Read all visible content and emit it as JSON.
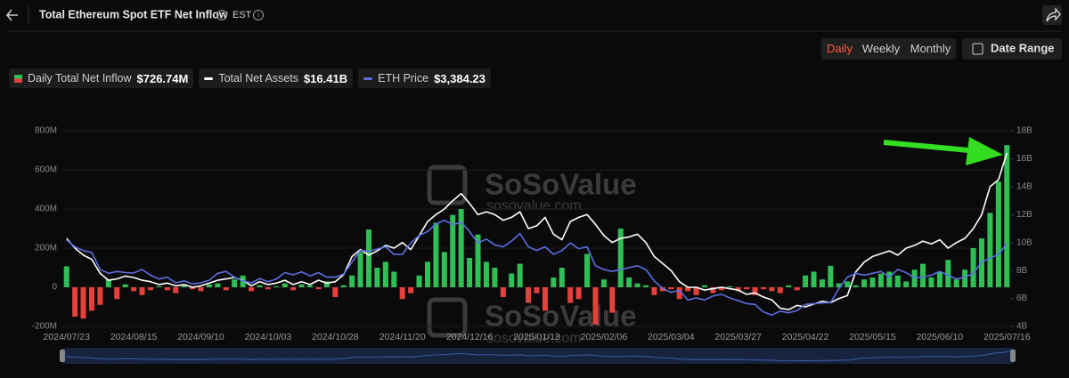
{
  "chart_data": {
    "type": "bar",
    "title": "Total Ethereum Spot ETF Net Inflow",
    "timezone": "EST",
    "tabs": [
      "Daily",
      "Weekly",
      "Monthly"
    ],
    "active_tab": 0,
    "date_range_label": "Date Range",
    "watermark": [
      "SoSoValue",
      "sosovalue.com"
    ],
    "grid": true,
    "categories": [
      "2024/07/23",
      null,
      null,
      null,
      null,
      null,
      null,
      null,
      "2024/08/15",
      null,
      null,
      null,
      null,
      null,
      null,
      null,
      "2024/09/10",
      null,
      null,
      null,
      null,
      null,
      null,
      null,
      "2024/10/03",
      null,
      null,
      null,
      null,
      null,
      null,
      null,
      "2024/10/28",
      null,
      null,
      null,
      null,
      null,
      null,
      null,
      "2024/11/20",
      null,
      null,
      null,
      null,
      null,
      null,
      null,
      "2024/12/16",
      null,
      null,
      null,
      null,
      null,
      null,
      null,
      "2025/01/13",
      null,
      null,
      null,
      null,
      null,
      null,
      null,
      "2025/02/06",
      null,
      null,
      null,
      null,
      null,
      null,
      null,
      "2025/03/04",
      null,
      null,
      null,
      null,
      null,
      null,
      null,
      "2025/03/27",
      null,
      null,
      null,
      null,
      null,
      null,
      null,
      "2025/04/22",
      null,
      null,
      null,
      null,
      null,
      null,
      null,
      "2025/05/15",
      null,
      null,
      null,
      null,
      null,
      null,
      null,
      "2025/06/10",
      null,
      null,
      null,
      null,
      null,
      null,
      null,
      "2025/07/16"
    ],
    "series": [
      {
        "name": "Daily Total Net Inflow",
        "type": "bar",
        "axis": "y",
        "color": "#2fbf55",
        "negative_color": "#e5403b",
        "current_label": "$726.74M",
        "values": [
          107,
          -150,
          -160,
          -120,
          -90,
          40,
          -60,
          15,
          -20,
          -40,
          -15,
          5,
          -15,
          -30,
          10,
          -10,
          -20,
          15,
          20,
          -15,
          40,
          60,
          -20,
          10,
          -10,
          5,
          20,
          -15,
          15,
          10,
          -10,
          30,
          -50,
          10,
          60,
          180,
          295,
          100,
          130,
          80,
          -60,
          -30,
          60,
          130,
          330,
          180,
          370,
          400,
          150,
          270,
          130,
          100,
          -50,
          70,
          120,
          -80,
          -30,
          -120,
          50,
          100,
          -80,
          -60,
          170,
          -190,
          40,
          -130,
          300,
          50,
          20,
          10,
          -40,
          -20,
          -10,
          -60,
          -20,
          -40,
          10,
          -30,
          -15,
          5,
          -20,
          -10,
          -40,
          -10,
          -20,
          -30,
          10,
          -15,
          60,
          80,
          40,
          110,
          20,
          30,
          10,
          40,
          50,
          70,
          80,
          60,
          30,
          90,
          120,
          50,
          80,
          140,
          40,
          90,
          200,
          250,
          380,
          540,
          726.74
        ]
      },
      {
        "name": "Total Net Assets",
        "type": "line",
        "axis": "y2",
        "color": "#ffffff",
        "current_label": "$16.41B",
        "values": [
          10.3,
          9.6,
          9.1,
          8.8,
          7.8,
          7.3,
          7.4,
          7.6,
          7.5,
          7.3,
          7.2,
          7.0,
          7.1,
          6.9,
          7.0,
          6.8,
          6.9,
          7.1,
          7.3,
          7.4,
          7.5,
          7.3,
          6.9,
          7.2,
          7.0,
          7.1,
          7.3,
          7.0,
          7.2,
          7.0,
          7.3,
          7.1,
          7.2,
          7.7,
          9.0,
          9.5,
          9.1,
          9.4,
          9.8,
          9.6,
          10.0,
          9.5,
          10.5,
          11.5,
          12.0,
          12.4,
          13.0,
          13.5,
          12.8,
          12.0,
          12.2,
          12.0,
          11.6,
          11.8,
          12.2,
          11.0,
          11.2,
          11.8,
          10.6,
          10.2,
          11.5,
          11.8,
          12.0,
          11.3,
          10.5,
          10.0,
          10.3,
          10.4,
          10.6,
          10.0,
          9.0,
          8.5,
          8.0,
          7.2,
          6.8,
          6.8,
          6.6,
          6.7,
          6.8,
          6.7,
          6.6,
          6.3,
          6.4,
          6.1,
          5.9,
          5.3,
          5.2,
          5.5,
          5.4,
          5.6,
          5.8,
          5.7,
          6.0,
          6.2,
          7.9,
          8.6,
          9.0,
          9.2,
          9.4,
          9.1,
          9.6,
          9.8,
          10.1,
          9.9,
          10.2,
          9.6,
          10.0,
          10.3,
          11.0,
          12.0,
          14.0,
          14.5,
          16.41
        ]
      },
      {
        "name": "ETH Price",
        "type": "line",
        "axis": "y3",
        "color": "#5b6fe3",
        "current_label": "$3,384.23",
        "values": [
          3480,
          3300,
          3200,
          3150,
          2700,
          2600,
          2650,
          2620,
          2610,
          2700,
          2550,
          2450,
          2500,
          2350,
          2400,
          2320,
          2350,
          2420,
          2600,
          2650,
          2500,
          2400,
          2350,
          2460,
          2380,
          2450,
          2620,
          2560,
          2640,
          2530,
          2620,
          2500,
          2500,
          2580,
          2900,
          3200,
          3180,
          3240,
          3300,
          3100,
          3100,
          3400,
          3600,
          3700,
          3900,
          4000,
          3880,
          3950,
          3700,
          3400,
          3500,
          3350,
          3300,
          3450,
          3650,
          3300,
          3200,
          3300,
          3100,
          3200,
          3400,
          3250,
          3300,
          2800,
          2700,
          2650,
          2700,
          2750,
          2800,
          2700,
          2400,
          2200,
          2100,
          2150,
          1900,
          1950,
          1900,
          2000,
          2050,
          1950,
          1880,
          1800,
          1780,
          1580,
          1500,
          1600,
          1560,
          1620,
          1780,
          1800,
          1820,
          1830,
          2200,
          2500,
          2600,
          2550,
          2600,
          2650,
          2500,
          2700,
          2620,
          2480,
          2500,
          2550,
          2650,
          2550,
          2450,
          2500,
          2600,
          2900,
          3000,
          3100,
          3384.23
        ]
      }
    ],
    "ylim": [
      -200,
      800
    ],
    "yticks": [
      {
        "value": -200,
        "label": "-200M"
      },
      {
        "value": 0,
        "label": "0"
      },
      {
        "value": 200,
        "label": "200M"
      },
      {
        "value": 400,
        "label": "400M"
      },
      {
        "value": 600,
        "label": "600M"
      },
      {
        "value": 800,
        "label": "800M"
      }
    ],
    "y2lim": [
      4,
      18
    ],
    "y2ticks": [
      {
        "value": 4,
        "label": "4B"
      },
      {
        "value": 6,
        "label": "6B"
      },
      {
        "value": 8,
        "label": "8B"
      },
      {
        "value": 10,
        "label": "10B"
      },
      {
        "value": 12,
        "label": "12B"
      },
      {
        "value": 14,
        "label": "14B"
      },
      {
        "value": 16,
        "label": "16B"
      },
      {
        "value": 18,
        "label": "18B"
      }
    ],
    "y3lim": [
      1200,
      6360
    ]
  }
}
